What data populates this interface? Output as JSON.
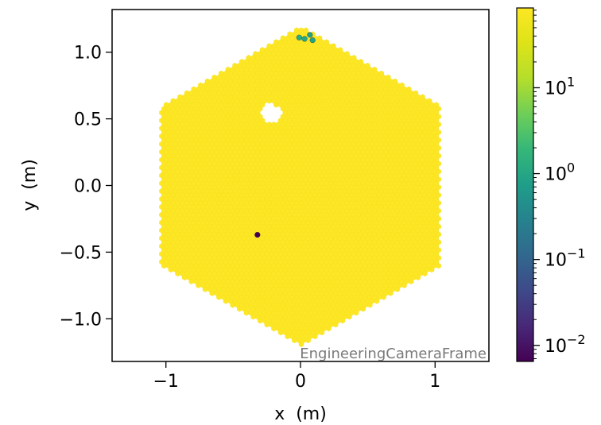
{
  "chart_data": {
    "type": "heatmap",
    "subtype": "hexbin",
    "title": "",
    "xlabel": "x  (m)",
    "ylabel": "y  (m)",
    "xlim": [
      -1.4,
      1.4
    ],
    "ylim": [
      -1.32,
      1.32
    ],
    "x_ticks": [
      {
        "value": -1,
        "label": "−1"
      },
      {
        "value": 0,
        "label": "0"
      },
      {
        "value": 1,
        "label": "1"
      }
    ],
    "y_ticks": [
      {
        "value": 1.0,
        "label": "1.0"
      },
      {
        "value": 0.5,
        "label": "0.5"
      },
      {
        "value": 0.0,
        "label": "0.0"
      },
      {
        "value": -0.5,
        "label": "−0.5"
      },
      {
        "value": -1.0,
        "label": "−1.0"
      }
    ],
    "annotation": "EngineeringCameraFrame",
    "region": {
      "shape": "hexagon",
      "circumradius": 1.2,
      "dominant_color": "#fde725",
      "hole_center": [
        -0.22,
        0.54
      ],
      "hole_radius": 0.075
    },
    "highlights": [
      {
        "x": -0.32,
        "y": -0.37,
        "value": 0.006
      },
      {
        "x": -0.01,
        "y": 1.11,
        "value": 1.2
      },
      {
        "x": 0.03,
        "y": 1.1,
        "value": 1.0
      },
      {
        "x": 0.07,
        "y": 1.13,
        "value": 0.8
      },
      {
        "x": 0.09,
        "y": 1.09,
        "value": 0.9
      }
    ],
    "colorbar": {
      "scale": "log",
      "colormap": "viridis",
      "range": [
        0.0065,
        85
      ],
      "ticks": [
        {
          "value": 0.01,
          "base": "10",
          "exp": "−2"
        },
        {
          "value": 0.1,
          "base": "10",
          "exp": "−1"
        },
        {
          "value": 1,
          "base": "10",
          "exp": "0"
        },
        {
          "value": 10,
          "base": "10",
          "exp": "1"
        }
      ]
    }
  }
}
